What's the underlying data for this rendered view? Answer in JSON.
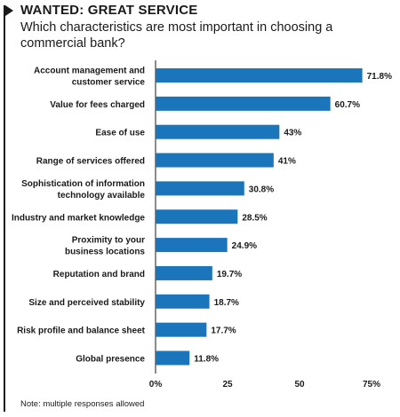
{
  "headline": "WANTED: GREAT SERVICE",
  "subtitle": "Which characteristics are most important in choosing a commercial bank?",
  "note": "Note: multiple responses allowed",
  "colors": {
    "bar": "#1b75bb",
    "text": "#1a1a1a",
    "axis": "#1a1a1a"
  },
  "chart_data": {
    "type": "bar",
    "orientation": "horizontal",
    "title": "Which characteristics are most important in choosing a commercial bank?",
    "categories": [
      [
        "Account management and",
        "customer service"
      ],
      [
        "Value for fees charged"
      ],
      [
        "Ease of use"
      ],
      [
        "Range of services offered"
      ],
      [
        "Sophistication of information",
        "technology available"
      ],
      [
        "Industry and market knowledge"
      ],
      [
        "Proximity to your",
        "business locations"
      ],
      [
        "Reputation and brand"
      ],
      [
        "Size and perceived stability"
      ],
      [
        "Risk profile and balance sheet"
      ],
      [
        "Global presence"
      ]
    ],
    "values": [
      71.8,
      60.7,
      43,
      41,
      30.8,
      28.5,
      24.9,
      19.7,
      18.7,
      17.7,
      11.8
    ],
    "value_labels": [
      "71.8%",
      "60.7%",
      "43%",
      "41%",
      "30.8%",
      "28.5%",
      "24.9%",
      "19.7%",
      "18.7%",
      "17.7%",
      "11.8%"
    ],
    "x_ticks": [
      0,
      25,
      50,
      75
    ],
    "x_tick_labels": [
      "0%",
      "25",
      "50",
      "75%"
    ],
    "xlim": [
      0,
      75
    ],
    "grid": false,
    "legend": "none"
  }
}
